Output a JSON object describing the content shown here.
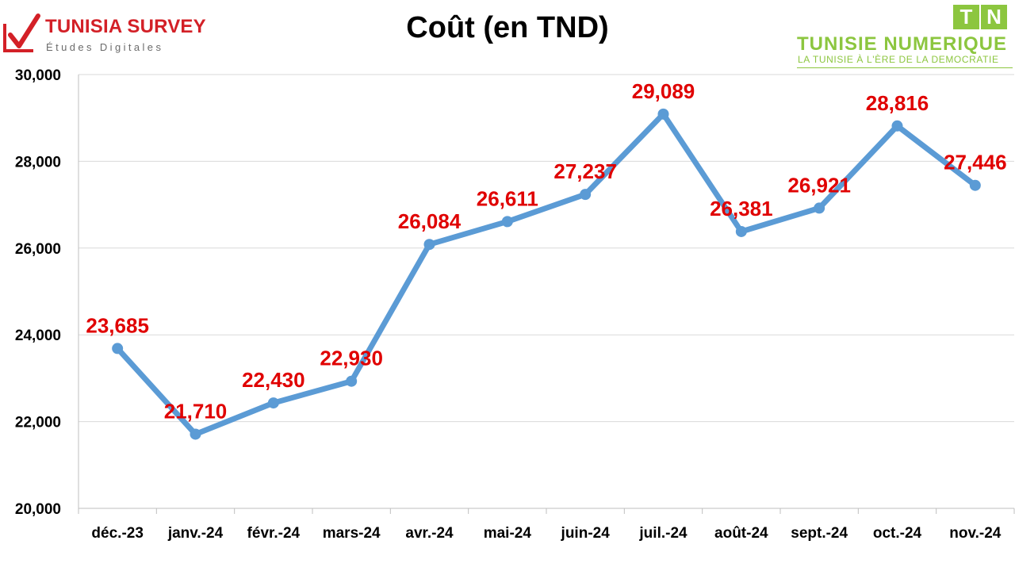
{
  "header": {
    "logo_left": {
      "name": "TUNISIA SURVEY",
      "tagline": "Études Digitales"
    },
    "logo_right": {
      "badge": [
        "T",
        "N"
      ],
      "name": "TUNISIE NUMERIQUE",
      "tagline": "LA TUNISIE À L'ÈRE DE LA DEMOCRATIE"
    }
  },
  "colors": {
    "line": "#5b9bd5",
    "data_label": "#e00000",
    "grid": "#d9d9d9",
    "brand_red": "#d32027",
    "brand_green": "#8cc63f"
  },
  "chart_data": {
    "type": "line",
    "title": "Coût (en TND)",
    "xlabel": "",
    "ylabel": "",
    "categories": [
      "déc.-23",
      "janv.-24",
      "févr.-24",
      "mars-24",
      "avr.-24",
      "mai-24",
      "juin-24",
      "juil.-24",
      "août-24",
      "sept.-24",
      "oct.-24",
      "nov.-24"
    ],
    "series": [
      {
        "values": [
          23685,
          21710,
          22430,
          22930,
          26084,
          26611,
          27237,
          29089,
          26381,
          26921,
          28816,
          27446
        ]
      }
    ],
    "value_labels": [
      "23,685",
      "21,710",
      "22,430",
      "22,930",
      "26,084",
      "26,611",
      "27,237",
      "29,089",
      "26,381",
      "26,921",
      "28,816",
      "27,446"
    ],
    "ylim": [
      20000,
      30000
    ],
    "yticks": [
      20000,
      22000,
      24000,
      26000,
      28000,
      30000
    ],
    "ytick_labels": [
      "20,000",
      "22,000",
      "24,000",
      "26,000",
      "28,000",
      "30,000"
    ],
    "grid": true,
    "legend": "none"
  }
}
